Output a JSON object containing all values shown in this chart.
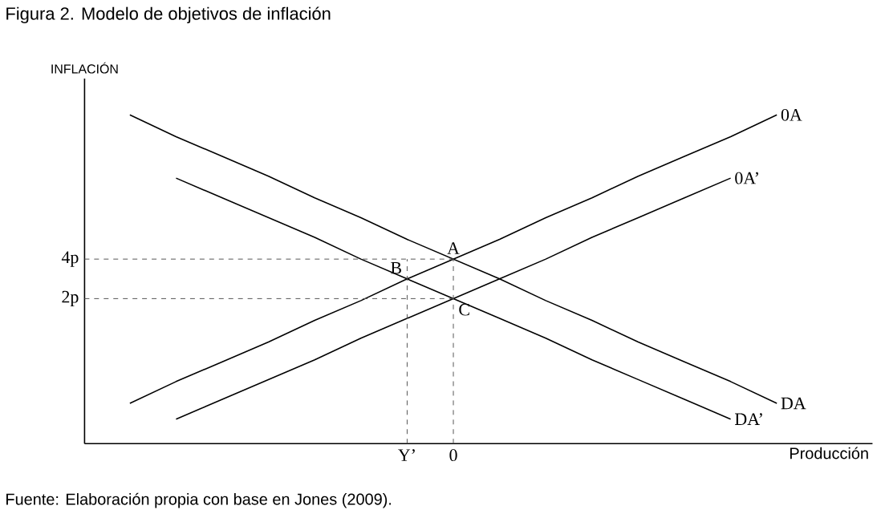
{
  "chart_data": {
    "type": "line",
    "title": "Figura 2. Modelo de objetivos de inflación",
    "xlabel": "Producción",
    "ylabel": "INFLACIÓN",
    "ylim": [
      -5.34,
      13.14
    ],
    "categories": [
      null,
      null,
      null,
      null,
      null,
      null,
      "Y’",
      "0",
      null,
      null,
      null,
      null,
      null,
      null,
      null
    ],
    "yticks": [
      {
        "value": 2,
        "label": "2p"
      },
      {
        "value": 4,
        "label": "4p"
      }
    ],
    "marker": "none",
    "line_style": "solid",
    "series": [
      {
        "name": "0A",
        "color": "#000000",
        "values": [
          -3.3,
          -2.2,
          -1.2,
          -0.2,
          0.9,
          1.9,
          3.0,
          4.0,
          5.0,
          6.1,
          7.1,
          8.2,
          9.2,
          10.2,
          11.3
        ]
      },
      {
        "name": "0A’",
        "color": "#000000",
        "values": [
          null,
          -4.1,
          -3.1,
          -2.1,
          -1.1,
          0.0,
          1.0,
          2.0,
          3.0,
          4.0,
          5.1,
          6.1,
          7.1,
          8.1,
          null
        ]
      },
      {
        "name": "DA",
        "color": "#000000",
        "values": [
          11.3,
          10.2,
          9.2,
          8.2,
          7.1,
          6.1,
          5.0,
          4.0,
          3.0,
          1.9,
          0.9,
          -0.2,
          -1.2,
          -2.2,
          -3.3
        ]
      },
      {
        "name": "DA’",
        "color": "#000000",
        "values": [
          null,
          8.1,
          7.1,
          6.1,
          5.1,
          4.0,
          3.0,
          2.0,
          1.0,
          0.0,
          -1.1,
          -2.1,
          -3.1,
          -4.1,
          null
        ]
      }
    ],
    "ref_lines": [
      {
        "axis": "y",
        "value": 4,
        "line_style": "dashed"
      },
      {
        "axis": "y",
        "value": 2,
        "line_style": "dashed"
      },
      {
        "axis": "x",
        "value": "Y’",
        "line_style": "dashed"
      },
      {
        "axis": "x",
        "value": "0",
        "line_style": "dashed"
      }
    ],
    "annotations": [
      {
        "text": "A",
        "x": "0",
        "y": 4
      },
      {
        "text": "B",
        "x": "Y’",
        "y": 3.0
      },
      {
        "text": "C",
        "x": "0",
        "y": 2
      },
      "Fuente: Elaboración propia con base en Jones (2009)."
    ]
  }
}
